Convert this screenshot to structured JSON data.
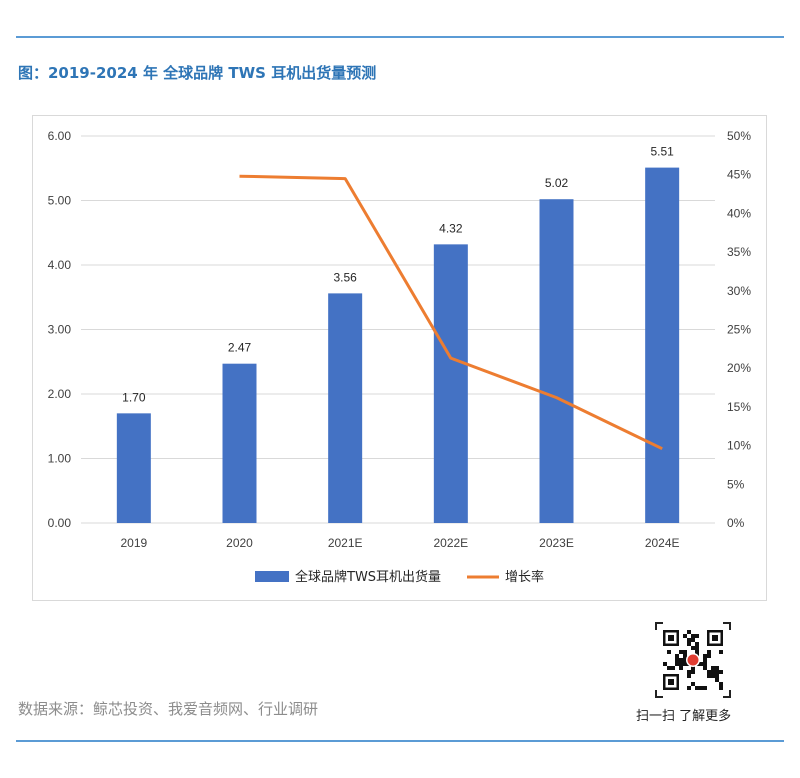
{
  "header": {
    "title": "图：2019-2024 年 全球品牌 TWS 耳机出货量预测"
  },
  "footer": {
    "source": "数据来源：鲸芯投资、我爱音频网、行业调研",
    "qr_caption": "扫一扫 了解更多",
    "qr_icon": "qr-code-icon"
  },
  "colors": {
    "bar": "#4472c4",
    "line": "#ed7d31",
    "grid": "#d9d9d9",
    "axis_text": "#404040"
  },
  "chart_data": {
    "type": "bar",
    "title": "",
    "categories": [
      "2019",
      "2020",
      "2021E",
      "2022E",
      "2023E",
      "2024E"
    ],
    "series": [
      {
        "name": "全球品牌TWS耳机出货量",
        "type": "bar",
        "axis": "left",
        "values": [
          1.7,
          2.47,
          3.56,
          4.32,
          5.02,
          5.51
        ],
        "labels": [
          "1.70",
          "2.47",
          "3.56",
          "4.32",
          "5.02",
          "5.51"
        ]
      },
      {
        "name": "增长率",
        "type": "line",
        "axis": "right",
        "values": [
          null,
          44.8,
          44.5,
          21.3,
          16.2,
          9.6
        ]
      }
    ],
    "y_left": {
      "range": [
        0,
        6
      ],
      "ticks": [
        "0.00",
        "1.00",
        "2.00",
        "3.00",
        "4.00",
        "5.00",
        "6.00"
      ]
    },
    "y_right": {
      "range": [
        0,
        50
      ],
      "ticks": [
        "0%",
        "5%",
        "10%",
        "15%",
        "20%",
        "25%",
        "30%",
        "35%",
        "40%",
        "45%",
        "50%"
      ]
    },
    "grid": true,
    "legend_position": "bottom"
  }
}
